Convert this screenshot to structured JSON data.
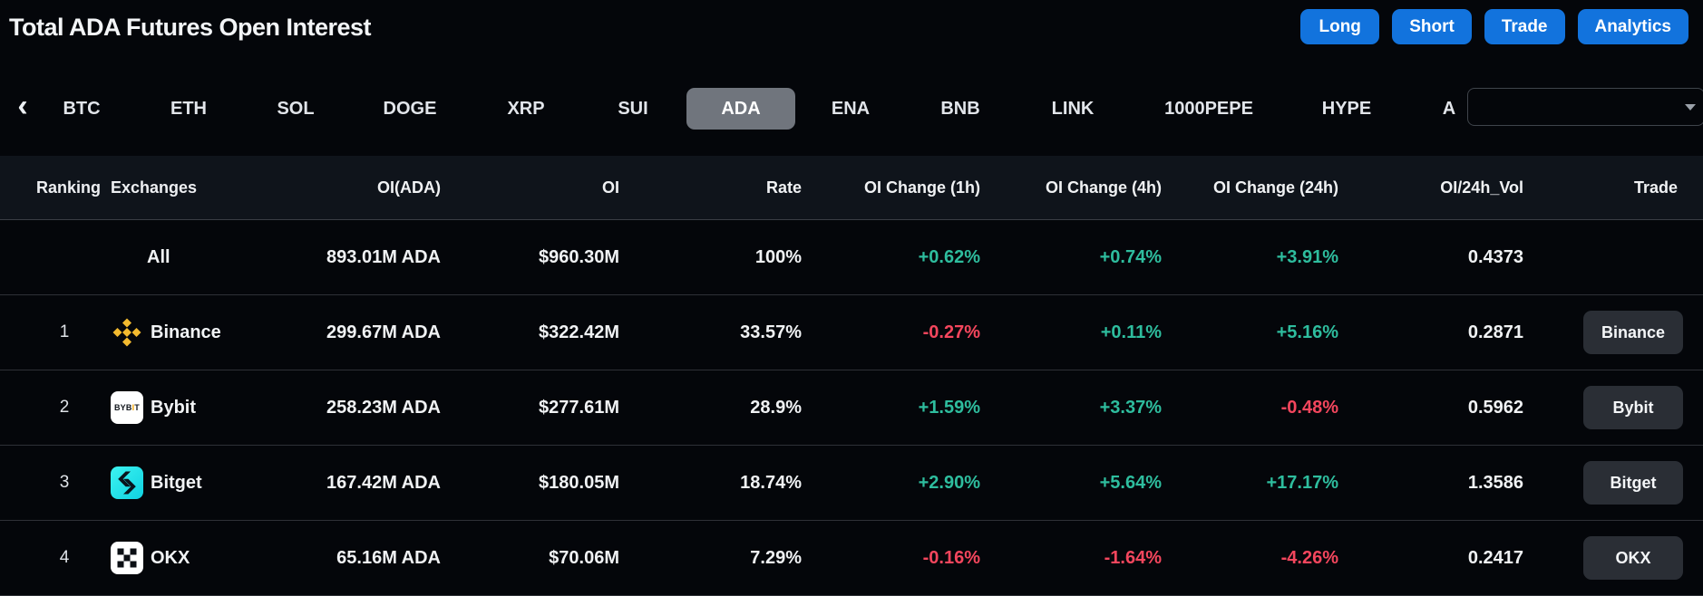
{
  "header": {
    "title": "Total ADA Futures Open Interest",
    "actions": [
      {
        "label": "Long"
      },
      {
        "label": "Short"
      },
      {
        "label": "Trade"
      },
      {
        "label": "Analytics"
      }
    ]
  },
  "tabs": {
    "items": [
      "BTC",
      "ETH",
      "SOL",
      "DOGE",
      "XRP",
      "SUI",
      "ADA",
      "ENA",
      "BNB",
      "LINK",
      "1000PEPE",
      "HYPE",
      "A"
    ],
    "selected": "ADA",
    "search": {
      "value": "",
      "placeholder": ""
    }
  },
  "table": {
    "columns": [
      "Ranking",
      "Exchanges",
      "OI(ADA)",
      "OI",
      "Rate",
      "OI Change (1h)",
      "OI Change (4h)",
      "OI Change (24h)",
      "OI/24h_Vol",
      "Trade"
    ],
    "rows": [
      {
        "ranking": "",
        "exchange": "All",
        "icon": "",
        "oi_ada": "893.01M ADA",
        "oi": "$960.30M",
        "rate": "100%",
        "chg_1h": "+0.62%",
        "chg_4h": "+0.74%",
        "chg_24h": "+3.91%",
        "oi_24h_vol": "0.4373",
        "trade": ""
      },
      {
        "ranking": "1",
        "exchange": "Binance",
        "icon": "binance-icon",
        "oi_ada": "299.67M ADA",
        "oi": "$322.42M",
        "rate": "33.57%",
        "chg_1h": "-0.27%",
        "chg_4h": "+0.11%",
        "chg_24h": "+5.16%",
        "oi_24h_vol": "0.2871",
        "trade": "Binance"
      },
      {
        "ranking": "2",
        "exchange": "Bybit",
        "icon": "bybit-icon",
        "oi_ada": "258.23M ADA",
        "oi": "$277.61M",
        "rate": "28.9%",
        "chg_1h": "+1.59%",
        "chg_4h": "+3.37%",
        "chg_24h": "-0.48%",
        "oi_24h_vol": "0.5962",
        "trade": "Bybit"
      },
      {
        "ranking": "3",
        "exchange": "Bitget",
        "icon": "bitget-icon",
        "oi_ada": "167.42M ADA",
        "oi": "$180.05M",
        "rate": "18.74%",
        "chg_1h": "+2.90%",
        "chg_4h": "+5.64%",
        "chg_24h": "+17.17%",
        "oi_24h_vol": "1.3586",
        "trade": "Bitget"
      },
      {
        "ranking": "4",
        "exchange": "OKX",
        "icon": "okx-icon",
        "oi_ada": "65.16M ADA",
        "oi": "$70.06M",
        "rate": "7.29%",
        "chg_1h": "-0.16%",
        "chg_4h": "-1.64%",
        "chg_24h": "-4.26%",
        "oi_24h_vol": "0.2417",
        "trade": "OKX"
      }
    ]
  },
  "colors": {
    "page_bg": "#04060a",
    "header_band_bg": "#0f141b",
    "divider": "#2e3137",
    "text_primary": "#eef0f3",
    "accent_blue": "#1273dd",
    "positive_green": "#2ebd9e",
    "negative_red": "#f4465d",
    "tab_selected_bg": "#70757d",
    "trade_button_bg": "#2a2e35",
    "search_border": "#3f444b",
    "binance_gold": "#f3ba2f",
    "bybit_accent": "#f7a600",
    "bitget_cyan": "#1fe2e2"
  }
}
